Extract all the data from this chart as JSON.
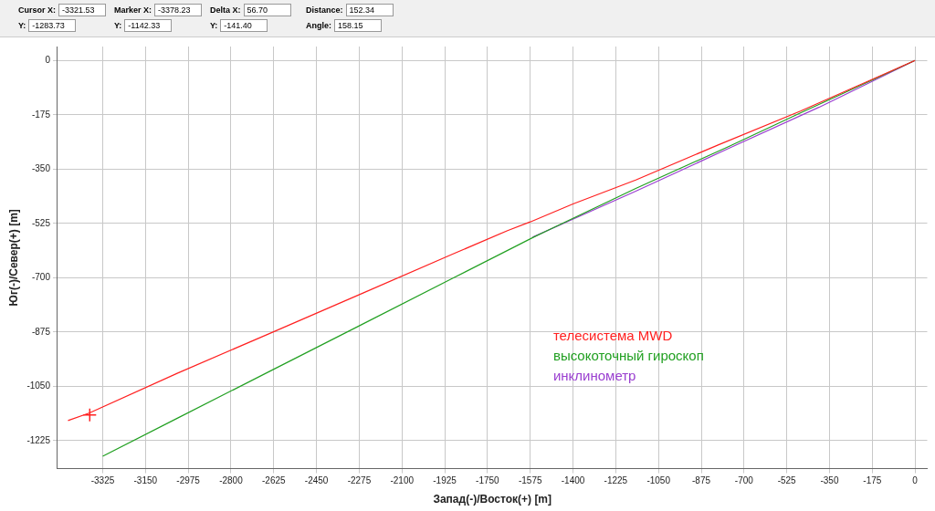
{
  "chart_data": {
    "type": "line",
    "xlabel": "Запад(-)/Восток(+) [m]",
    "ylabel": "Юг(-)/Север(+) [m]",
    "xlim": [
      -3510,
      50
    ],
    "xticks": [
      -3325,
      -3150,
      -2975,
      -2800,
      -2625,
      -2450,
      -2275,
      -2100,
      -1925,
      -1750,
      -1575,
      -1400,
      -1225,
      -1050,
      -875,
      -700,
      -525,
      -350,
      -175,
      0
    ],
    "ylim": [
      -1315,
      45
    ],
    "yticks": [
      0,
      -175,
      -350,
      -525,
      -700,
      -875,
      -1050,
      -1225
    ],
    "grid": true,
    "legend": "bottom right",
    "marker": "none",
    "line_style": "solid",
    "series": [
      {
        "name": "телесистема MWD",
        "color": "#ff2020",
        "x": [
          -3467,
          -3381,
          -3018,
          -2643,
          -2268,
          -1893,
          -1668,
          -1575,
          -1400,
          -1143,
          -806,
          -469,
          0
        ],
        "values": [
          -1160,
          -1136,
          -1007,
          -880,
          -752,
          -624,
          -548,
          -520,
          -462,
          -385,
          -272,
          -163,
          0
        ]
      },
      {
        "name": "высокоточный гироскоп",
        "color": "#22a022",
        "x": [
          -3325,
          -3018,
          -2643,
          -2268,
          -1893,
          -1561,
          -1143,
          -768,
          -469,
          0
        ],
        "values": [
          -1275,
          -1152,
          -1002,
          -852,
          -702,
          -569,
          -412,
          -279,
          -169,
          0
        ]
      },
      {
        "name": "инклинометр",
        "color": "#9a3fd0",
        "x": [
          -1565,
          -1143,
          -768,
          -394,
          0
        ],
        "values": [
          -569,
          -421,
          -285,
          -151,
          0
        ]
      },
      {
        "type": "scatter",
        "marker": "cross",
        "color": "#ff2020",
        "x": [
          -3378
        ],
        "values": [
          -1142
        ]
      }
    ],
    "annotations": [
      "Cursor X: -3321.53",
      "Y: -1283.73",
      "Marker X: -3378.23",
      "Y: -1142.33",
      "Delta X: 56.70",
      "Y: -141.40",
      "Distance: 152.34",
      "Angle: 158.15"
    ]
  }
}
